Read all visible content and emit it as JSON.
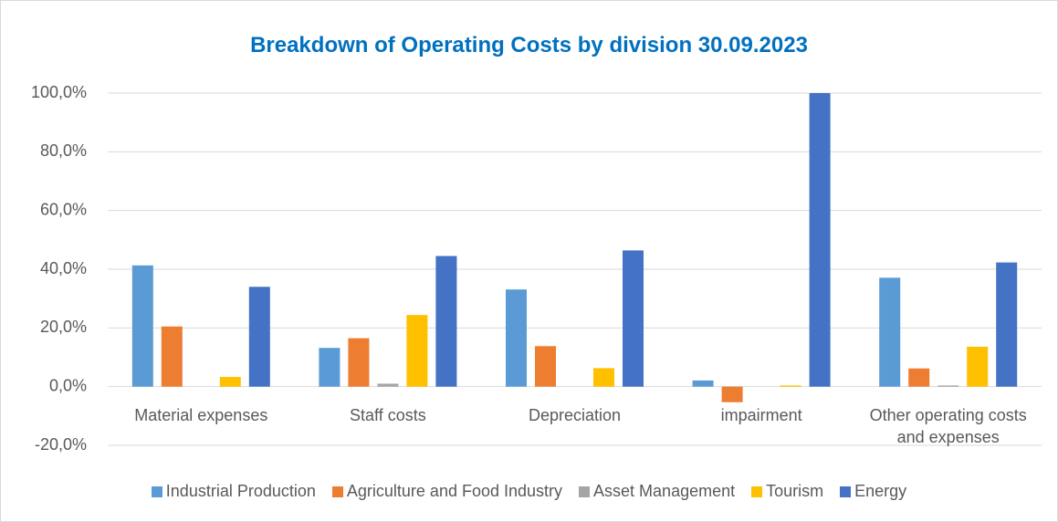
{
  "chart_data": {
    "type": "bar",
    "title": "Breakdown of Operating Costs by division 30.09.2023",
    "categories": [
      "Material expenses",
      "Staff costs",
      "Depreciation",
      "impairment",
      "Other operating costs and expenses"
    ],
    "series": [
      {
        "name": "Industrial Production",
        "color": "#5b9bd5",
        "values": [
          41.3,
          13.2,
          33.1,
          2.1,
          37.1
        ]
      },
      {
        "name": "Agriculture and Food Industry",
        "color": "#ed7d31",
        "values": [
          20.5,
          16.5,
          13.8,
          -5.3,
          6.2
        ]
      },
      {
        "name": "Asset Management",
        "color": "#a5a5a5",
        "values": [
          0,
          1.0,
          0,
          0,
          0.4
        ]
      },
      {
        "name": "Tourism",
        "color": "#ffc000",
        "values": [
          3.3,
          24.4,
          6.3,
          0.4,
          13.6
        ]
      },
      {
        "name": "Energy",
        "color": "#4472c4",
        "values": [
          34.0,
          44.5,
          46.4,
          100,
          42.3
        ]
      }
    ],
    "ylim": [
      -20,
      100
    ],
    "yticks": [
      {
        "value": -20,
        "label": "-20,0%"
      },
      {
        "value": 0,
        "label": "0,0%"
      },
      {
        "value": 20,
        "label": "20,0%"
      },
      {
        "value": 40,
        "label": "40,0%"
      },
      {
        "value": 60,
        "label": "60,0%"
      },
      {
        "value": 80,
        "label": "80,0%"
      },
      {
        "value": 100,
        "label": "100,0%"
      }
    ],
    "grid": true,
    "legend": "bottom"
  }
}
